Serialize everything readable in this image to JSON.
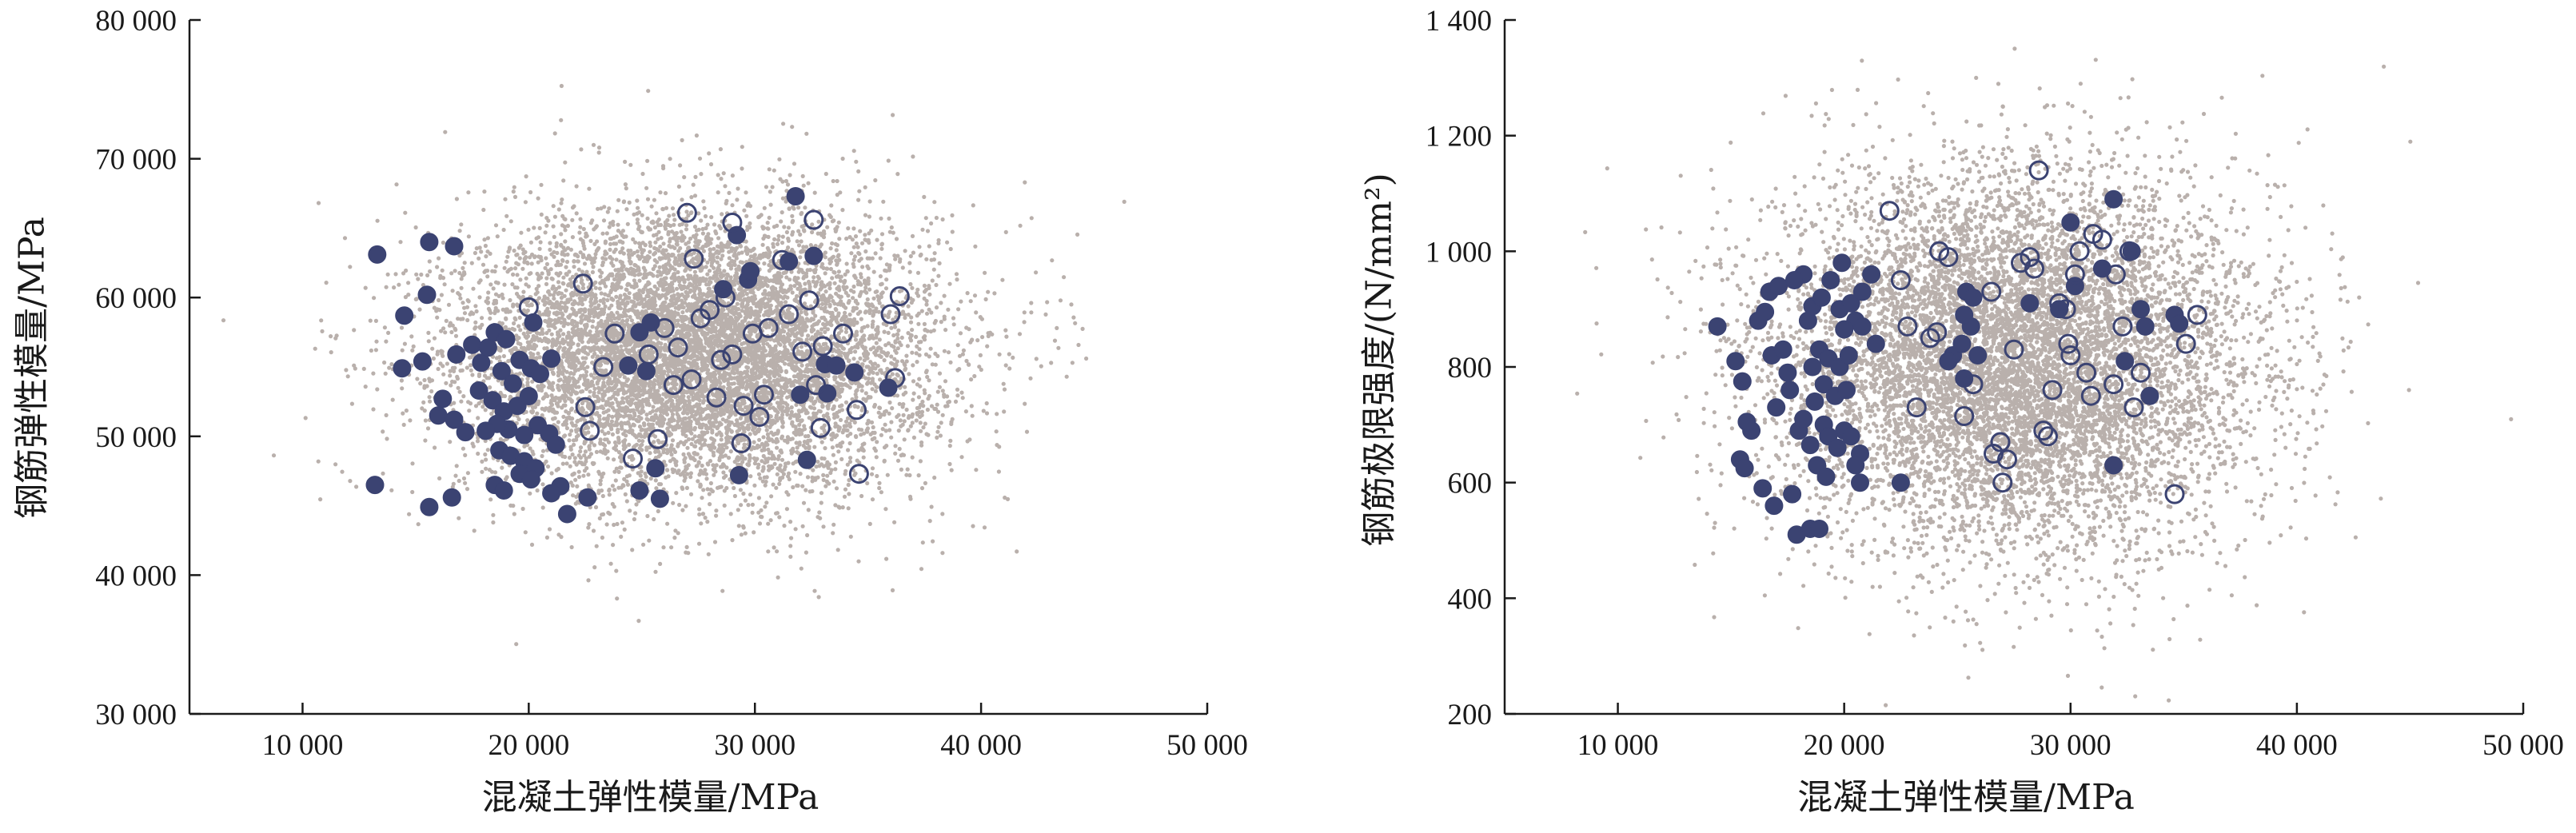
{
  "chart_data": [
    {
      "type": "scatter",
      "xlabel": "混凝土弹性模量/MPa",
      "ylabel": "钢筋弹性模量/MPa",
      "xlim": [
        5000,
        50000
      ],
      "ylim": [
        30000,
        80000
      ],
      "xticks": [
        10000,
        20000,
        30000,
        40000,
        50000
      ],
      "yticks": [
        30000,
        40000,
        50000,
        60000,
        70000,
        80000
      ],
      "xtick_labels": [
        "10 000",
        "20 000",
        "30 000",
        "40 000",
        "50 000"
      ],
      "ytick_labels": [
        "30 000",
        "40 000",
        "50 000",
        "60 000",
        "70 000",
        "80 000"
      ],
      "background_cloud": {
        "x_mean": 27500,
        "x_sd": 5200,
        "y_mean": 56000,
        "y_sd": 5000,
        "count": 9000,
        "color": "#b9b0ac"
      },
      "series": [
        {
          "marker": "filled-circle",
          "color": "#3b4372",
          "points": [
            [
              13300,
              63100
            ],
            [
              15600,
              64000
            ],
            [
              16700,
              63700
            ],
            [
              14500,
              58700
            ],
            [
              15500,
              60200
            ],
            [
              14400,
              54900
            ],
            [
              15300,
              55400
            ],
            [
              16200,
              52700
            ],
            [
              16000,
              51500
            ],
            [
              16800,
              55900
            ],
            [
              17500,
              56600
            ],
            [
              17900,
              55300
            ],
            [
              18200,
              56400
            ],
            [
              18500,
              57500
            ],
            [
              19000,
              57000
            ],
            [
              18800,
              54700
            ],
            [
              19300,
              53800
            ],
            [
              19600,
              55500
            ],
            [
              20100,
              54900
            ],
            [
              20500,
              54500
            ],
            [
              21000,
              55600
            ],
            [
              20200,
              58200
            ],
            [
              17800,
              53300
            ],
            [
              18400,
              52600
            ],
            [
              18900,
              51800
            ],
            [
              19500,
              52200
            ],
            [
              20000,
              52900
            ],
            [
              20400,
              50800
            ],
            [
              20900,
              50200
            ],
            [
              21200,
              49400
            ],
            [
              19800,
              50100
            ],
            [
              19100,
              50500
            ],
            [
              18600,
              50900
            ],
            [
              18100,
              50400
            ],
            [
              17200,
              50300
            ],
            [
              16700,
              51200
            ],
            [
              18700,
              49000
            ],
            [
              19200,
              48600
            ],
            [
              19800,
              48200
            ],
            [
              20300,
              47700
            ],
            [
              19600,
              47300
            ],
            [
              20100,
              46900
            ],
            [
              18500,
              46500
            ],
            [
              18900,
              46100
            ],
            [
              21400,
              46400
            ],
            [
              21000,
              45900
            ],
            [
              21700,
              44400
            ],
            [
              22600,
              45600
            ],
            [
              16600,
              45600
            ],
            [
              15600,
              44900
            ],
            [
              13200,
              46500
            ],
            [
              24400,
              55100
            ],
            [
              24900,
              57500
            ],
            [
              25400,
              58200
            ],
            [
              25200,
              54700
            ],
            [
              25800,
              45500
            ],
            [
              24900,
              46100
            ],
            [
              25600,
              47700
            ],
            [
              28600,
              60600
            ],
            [
              29200,
              64500
            ],
            [
              29700,
              61300
            ],
            [
              29800,
              61900
            ],
            [
              31500,
              62600
            ],
            [
              31800,
              67300
            ],
            [
              32600,
              63000
            ],
            [
              32000,
              53000
            ],
            [
              33100,
              55200
            ],
            [
              33600,
              55100
            ],
            [
              33200,
              53100
            ],
            [
              34400,
              54600
            ],
            [
              35900,
              53500
            ],
            [
              32300,
              48300
            ],
            [
              29300,
              47200
            ]
          ]
        },
        {
          "marker": "open-circle",
          "color": "#3b4372",
          "points": [
            [
              20000,
              59300
            ],
            [
              22400,
              61000
            ],
            [
              22500,
              52100
            ],
            [
              22700,
              50400
            ],
            [
              23300,
              55000
            ],
            [
              23800,
              57400
            ],
            [
              24600,
              48400
            ],
            [
              25300,
              55900
            ],
            [
              25700,
              49800
            ],
            [
              26000,
              57800
            ],
            [
              26400,
              53700
            ],
            [
              26600,
              56400
            ],
            [
              27000,
              66100
            ],
            [
              27200,
              54100
            ],
            [
              27300,
              62800
            ],
            [
              27600,
              58500
            ],
            [
              28000,
              59100
            ],
            [
              28300,
              52800
            ],
            [
              28500,
              55500
            ],
            [
              28700,
              60000
            ],
            [
              29000,
              55900
            ],
            [
              29000,
              65400
            ],
            [
              29400,
              49500
            ],
            [
              29500,
              52200
            ],
            [
              29900,
              57400
            ],
            [
              30200,
              51400
            ],
            [
              30400,
              53000
            ],
            [
              30600,
              57800
            ],
            [
              31200,
              62700
            ],
            [
              31500,
              58800
            ],
            [
              32100,
              56100
            ],
            [
              32400,
              59800
            ],
            [
              32600,
              65600
            ],
            [
              32700,
              53700
            ],
            [
              32900,
              50600
            ],
            [
              33000,
              56500
            ],
            [
              33900,
              57400
            ],
            [
              34500,
              51900
            ],
            [
              34600,
              47300
            ],
            [
              36000,
              58800
            ],
            [
              36200,
              54200
            ],
            [
              36400,
              60100
            ]
          ]
        }
      ]
    },
    {
      "type": "scatter",
      "xlabel": "混凝土弹性模量/MPa",
      "ylabel": "钢筋极限强度/(N/mm²)",
      "xlim": [
        5000,
        50000
      ],
      "ylim": [
        200,
        1400
      ],
      "xticks": [
        10000,
        20000,
        30000,
        40000,
        50000
      ],
      "yticks": [
        200,
        400,
        600,
        800,
        1000,
        1200,
        1400
      ],
      "xtick_labels": [
        "10 000",
        "20 000",
        "30 000",
        "40 000",
        "50 000"
      ],
      "ytick_labels": [
        "200",
        "400",
        "600",
        "800",
        "1 000",
        "1 200",
        "1 400"
      ],
      "background_cloud": {
        "x_mean": 27500,
        "x_sd": 5200,
        "y_mean": 810,
        "y_sd": 160,
        "count": 9000,
        "color": "#b9b0ac"
      },
      "series": [
        {
          "marker": "filled-circle",
          "color": "#3b4372",
          "points": [
            [
              14400,
              870
            ],
            [
              15200,
              810
            ],
            [
              15500,
              775
            ],
            [
              16200,
              880
            ],
            [
              16500,
              895
            ],
            [
              16700,
              930
            ],
            [
              17100,
              940
            ],
            [
              16800,
              820
            ],
            [
              17300,
              830
            ],
            [
              17500,
              790
            ],
            [
              17000,
              730
            ],
            [
              17600,
              760
            ],
            [
              15900,
              690
            ],
            [
              15700,
              705
            ],
            [
              15400,
              640
            ],
            [
              15600,
              625
            ],
            [
              16400,
              590
            ],
            [
              16900,
              560
            ],
            [
              17700,
              580
            ],
            [
              17900,
              510
            ],
            [
              18500,
              520
            ],
            [
              18900,
              520
            ],
            [
              18000,
              690
            ],
            [
              18200,
              710
            ],
            [
              18500,
              665
            ],
            [
              18800,
              630
            ],
            [
              19100,
              700
            ],
            [
              19300,
              680
            ],
            [
              19700,
              660
            ],
            [
              20000,
              690
            ],
            [
              20300,
              680
            ],
            [
              20700,
              650
            ],
            [
              20500,
              630
            ],
            [
              20700,
              600
            ],
            [
              19200,
              610
            ],
            [
              18700,
              740
            ],
            [
              19100,
              770
            ],
            [
              19600,
              750
            ],
            [
              20100,
              760
            ],
            [
              18600,
              800
            ],
            [
              18900,
              830
            ],
            [
              19300,
              815
            ],
            [
              19800,
              800
            ],
            [
              20200,
              820
            ],
            [
              18400,
              880
            ],
            [
              18600,
              905
            ],
            [
              19000,
              920
            ],
            [
              19400,
              950
            ],
            [
              19900,
              980
            ],
            [
              19800,
              900
            ],
            [
              20300,
              910
            ],
            [
              20800,
              930
            ],
            [
              21200,
              960
            ],
            [
              20500,
              880
            ],
            [
              20800,
              870
            ],
            [
              18200,
              960
            ],
            [
              17800,
              950
            ],
            [
              20000,
              865
            ],
            [
              22500,
              600
            ],
            [
              21400,
              840
            ],
            [
              24800,
              820
            ],
            [
              25200,
              840
            ],
            [
              25600,
              870
            ],
            [
              25900,
              820
            ],
            [
              25400,
              930
            ],
            [
              25700,
              920
            ],
            [
              25300,
              890
            ],
            [
              24600,
              810
            ],
            [
              25300,
              780
            ],
            [
              28200,
              910
            ],
            [
              29500,
              900
            ],
            [
              30000,
              1050
            ],
            [
              30200,
              940
            ],
            [
              31400,
              970
            ],
            [
              31900,
              1090
            ],
            [
              32700,
              1000
            ],
            [
              33100,
              900
            ],
            [
              33300,
              870
            ],
            [
              34600,
              890
            ],
            [
              34800,
              875
            ],
            [
              32400,
              810
            ],
            [
              33500,
              750
            ],
            [
              31900,
              630
            ]
          ]
        },
        {
          "marker": "open-circle",
          "color": "#3b4372",
          "points": [
            [
              22000,
              1070
            ],
            [
              22500,
              950
            ],
            [
              23200,
              730
            ],
            [
              23800,
              850
            ],
            [
              24100,
              860
            ],
            [
              24600,
              990
            ],
            [
              25300,
              715
            ],
            [
              25700,
              770
            ],
            [
              26500,
              930
            ],
            [
              27000,
              600
            ],
            [
              27200,
              640
            ],
            [
              27500,
              830
            ],
            [
              27800,
              980
            ],
            [
              28200,
              990
            ],
            [
              28400,
              970
            ],
            [
              28600,
              1140
            ],
            [
              28800,
              690
            ],
            [
              29000,
              680
            ],
            [
              29200,
              760
            ],
            [
              29500,
              910
            ],
            [
              29800,
              900
            ],
            [
              29900,
              840
            ],
            [
              30000,
              820
            ],
            [
              30200,
              960
            ],
            [
              30400,
              1000
            ],
            [
              30700,
              790
            ],
            [
              30900,
              750
            ],
            [
              31000,
              1030
            ],
            [
              31400,
              1020
            ],
            [
              31900,
              770
            ],
            [
              32000,
              960
            ],
            [
              32300,
              870
            ],
            [
              32600,
              1000
            ],
            [
              32800,
              730
            ],
            [
              33100,
              790
            ],
            [
              34600,
              580
            ],
            [
              35100,
              840
            ],
            [
              35600,
              890
            ],
            [
              26600,
              650
            ],
            [
              26900,
              670
            ],
            [
              24200,
              1000
            ],
            [
              22800,
              870
            ]
          ]
        }
      ]
    }
  ]
}
